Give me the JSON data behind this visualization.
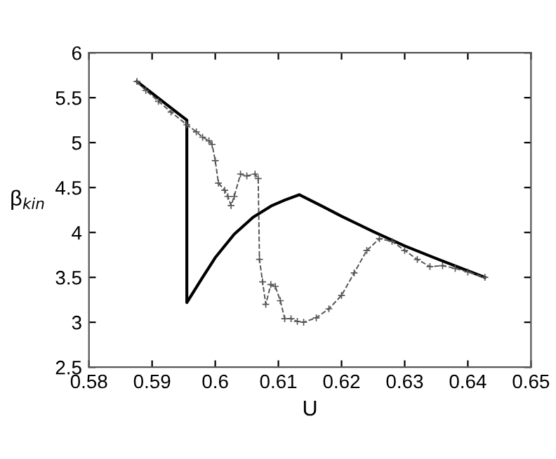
{
  "chart_data": {
    "type": "line",
    "xlabel": "U",
    "ylabel": "β$_{kin}$",
    "xlim": [
      0.58,
      0.65
    ],
    "xticks": [
      0.58,
      0.59,
      0.6,
      0.61,
      0.62,
      0.63,
      0.64,
      0.65
    ],
    "ylim": [
      2.5,
      6
    ],
    "yticks": [
      2.5,
      3,
      3.5,
      4,
      4.5,
      5,
      5.5,
      6
    ],
    "grid": false,
    "legend": false,
    "series": [
      {
        "color": "#000000",
        "marker": "none",
        "line_style": "solid",
        "x": [
          0.5876,
          0.5955,
          0.5955,
          0.598,
          0.6,
          0.603,
          0.606,
          0.609,
          0.611,
          0.6133,
          0.617,
          0.62,
          0.625,
          0.63,
          0.635,
          0.6427
        ],
        "values": [
          5.68,
          5.25,
          3.22,
          3.5,
          3.72,
          3.98,
          4.17,
          4.3,
          4.36,
          4.42,
          4.29,
          4.18,
          4.01,
          3.85,
          3.71,
          3.5
        ]
      },
      {
        "color": "#555555",
        "marker": "cross",
        "line_style": "dashed",
        "x": [
          0.5876,
          0.589,
          0.591,
          0.593,
          0.5955,
          0.597,
          0.598,
          0.599,
          0.5995,
          0.6,
          0.6005,
          0.6015,
          0.602,
          0.6025,
          0.603,
          0.604,
          0.605,
          0.6063,
          0.6068,
          0.607,
          0.6075,
          0.608,
          0.6088,
          0.6095,
          0.6103,
          0.611,
          0.612,
          0.613,
          0.614,
          0.616,
          0.618,
          0.62,
          0.622,
          0.624,
          0.626,
          0.628,
          0.63,
          0.632,
          0.634,
          0.636,
          0.638,
          0.64,
          0.6427
        ],
        "values": [
          5.68,
          5.58,
          5.46,
          5.34,
          5.2,
          5.12,
          5.06,
          5.02,
          4.98,
          4.8,
          4.55,
          4.47,
          4.4,
          4.3,
          4.4,
          4.65,
          4.63,
          4.65,
          4.6,
          3.7,
          3.45,
          3.2,
          3.42,
          3.4,
          3.24,
          3.04,
          3.04,
          3.01,
          3.0,
          3.05,
          3.15,
          3.3,
          3.55,
          3.8,
          3.93,
          3.9,
          3.8,
          3.7,
          3.62,
          3.63,
          3.6,
          3.56,
          3.5
        ]
      }
    ]
  }
}
